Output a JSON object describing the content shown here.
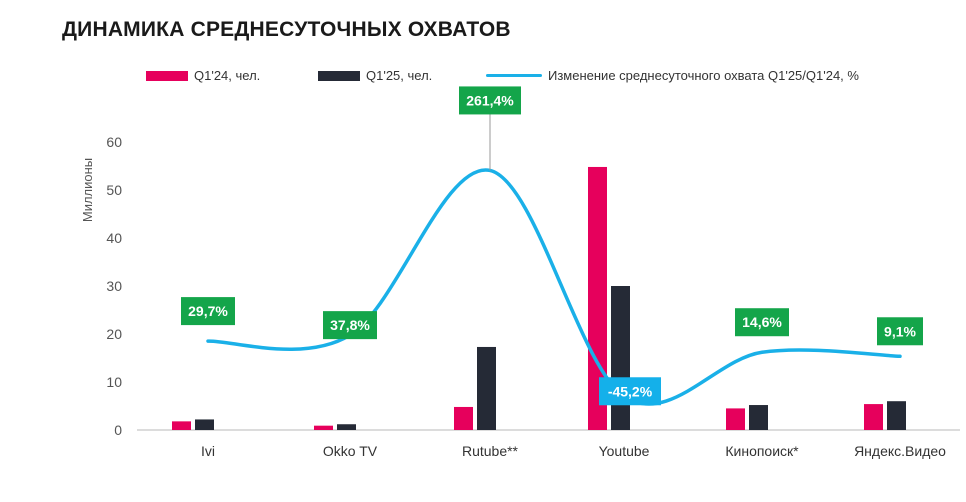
{
  "chart_data": {
    "type": "bar",
    "title": "ДИНАМИКА СРЕДНЕСУТОЧНЫХ ОХВАТОВ",
    "ylabel": "Миллионы",
    "ylim": [
      0,
      60
    ],
    "yticks": [
      0,
      10,
      20,
      30,
      40,
      50,
      60
    ],
    "y2lim": [
      -91,
      300
    ],
    "legend_position": "top",
    "categories": [
      "Ivi",
      "Okko TV",
      "Rutube**",
      "Youtube",
      "Кинопоиск*",
      "Яндекс.Видео"
    ],
    "series": [
      {
        "name": "Q1'24, чел.",
        "type": "bar",
        "color": "#e6005c",
        "values": [
          1.8,
          0.9,
          4.8,
          54.8,
          4.5,
          5.4
        ]
      },
      {
        "name": "Q1'25, чел.",
        "type": "bar",
        "color": "#252a36",
        "values": [
          2.2,
          1.2,
          17.3,
          30.0,
          5.2,
          6.0
        ]
      },
      {
        "name": "Изменение среднесуточного охвата Q1'25/Q1'24, %",
        "type": "line",
        "color": "#1ab0e8",
        "values": [
          29.7,
          37.8,
          261.4,
          -45.2,
          14.6,
          9.1
        ],
        "labels": [
          "29,7%",
          "37,8%",
          "261,4%",
          "-45,2%",
          "14,6%",
          "9,1%"
        ]
      }
    ],
    "label_colors": {
      "positive": "#14a54a",
      "negative": "#14b0ea"
    }
  }
}
